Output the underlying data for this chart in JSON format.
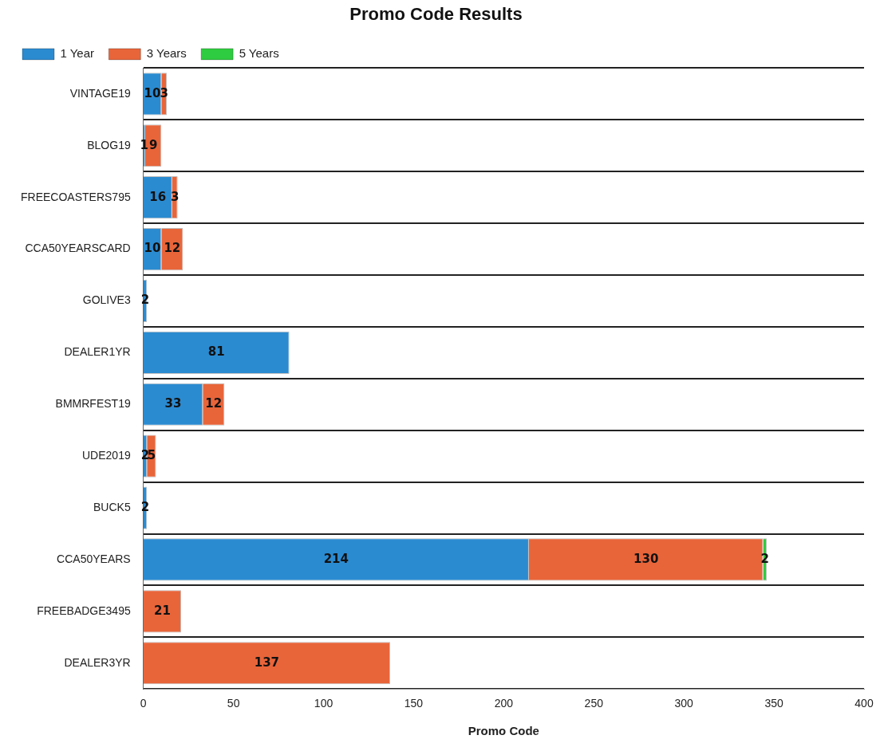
{
  "chart_data": {
    "type": "bar",
    "orientation": "horizontal",
    "stacked": true,
    "title": "Promo Code Results",
    "xlabel": "Promo Code",
    "categories": [
      "VINTAGE19",
      "BLOG19",
      "FREECOASTERS795",
      "CCA50YEARSCARD",
      "GOLIVE3",
      "DEALER1YR",
      "BMMRFEST19",
      "UDE2019",
      "BUCK5",
      "CCA50YEARS",
      "FREEBADGE3495",
      "DEALER3YR"
    ],
    "series": [
      {
        "name": "1 Year",
        "color": "#2b8bd1",
        "values": [
          10,
          1,
          16,
          10,
          2,
          81,
          33,
          2,
          2,
          214,
          null,
          null
        ]
      },
      {
        "name": "3 Years",
        "color": "#e8653a",
        "values": [
          3,
          9,
          3,
          12,
          null,
          null,
          12,
          5,
          null,
          130,
          21,
          137
        ]
      },
      {
        "name": "5 Years",
        "color": "#2ecc40",
        "values": [
          null,
          null,
          null,
          null,
          null,
          null,
          null,
          null,
          null,
          2,
          null,
          null
        ]
      }
    ],
    "xlim": [
      0,
      400
    ],
    "xticks": [
      0,
      50,
      100,
      150,
      200,
      250,
      300,
      350,
      400
    ],
    "grid": "y",
    "legend": "top left",
    "data_labels": true
  }
}
